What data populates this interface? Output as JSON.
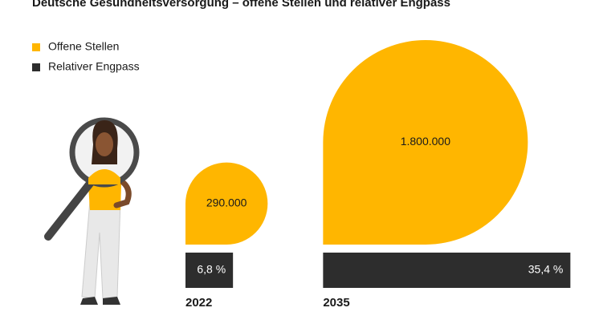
{
  "chart_data": {
    "type": "drop",
    "title": "Deutsche Gesundheitsversorgung – offene Stellen und relativer Engpass",
    "categories": [
      "2022",
      "2035"
    ],
    "series": [
      {
        "name": "Offene Stellen",
        "color": "#FFB600",
        "values": [
          290000,
          1800000
        ],
        "value_labels": [
          "290.000",
          "1.800.000"
        ]
      },
      {
        "name": "Relativer Engpass",
        "color": "#2D2D2D",
        "values": [
          6.8,
          35.4
        ],
        "value_labels": [
          "6,8 %",
          "35,4 %"
        ]
      }
    ],
    "legend": "top-left"
  }
}
